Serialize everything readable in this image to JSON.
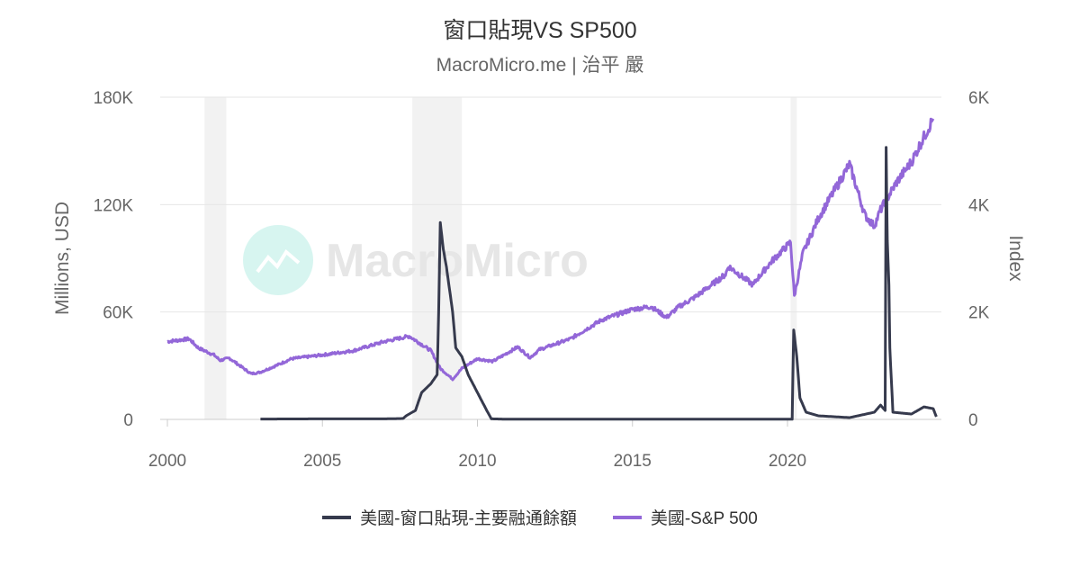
{
  "title": "窗口貼現VS SP500",
  "subtitle": "MacroMicro.me | 治平 嚴",
  "watermark": "MacroMicro",
  "chart_data": {
    "type": "line",
    "title": "窗口貼現VS SP500",
    "subtitle": "MacroMicro.me | 治平 嚴",
    "x_ticks": [
      "2000",
      "2005",
      "2010",
      "2015",
      "2020"
    ],
    "xlim": [
      2000,
      2024.9
    ],
    "y_left": {
      "label": "Millions, USD",
      "ticks": [
        "0",
        "60K",
        "120K",
        "180K"
      ],
      "lim": [
        0,
        180000
      ]
    },
    "y_right": {
      "label": "Index",
      "ticks": [
        "0",
        "2K",
        "4K",
        "6K"
      ],
      "lim": [
        0,
        6000
      ]
    },
    "grid": true,
    "legend_position": "bottom",
    "recessions": [
      [
        2001.2,
        2001.9
      ],
      [
        2007.9,
        2009.5
      ],
      [
        2020.1,
        2020.3
      ]
    ],
    "series": [
      {
        "name": "美國-窗口貼現-主要融通餘額",
        "axis": "left",
        "color": "#363a4d",
        "x": [
          2003.0,
          2005.0,
          2007.0,
          2007.6,
          2007.7,
          2008.0,
          2008.2,
          2008.5,
          2008.7,
          2008.75,
          2008.8,
          2008.9,
          2009.0,
          2009.2,
          2009.3,
          2009.5,
          2009.7,
          2010.0,
          2010.3,
          2010.45,
          2011,
          2015,
          2020.1,
          2020.15,
          2020.2,
          2020.3,
          2020.4,
          2020.6,
          2021.0,
          2022.0,
          2022.8,
          2023.0,
          2023.15,
          2023.18,
          2023.22,
          2023.27,
          2023.3,
          2023.4,
          2024.0,
          2024.4,
          2024.7,
          2024.8
        ],
        "values": [
          200,
          300,
          300,
          500,
          2000,
          5000,
          15000,
          20000,
          25000,
          60000,
          110000,
          95000,
          85000,
          60000,
          40000,
          35000,
          25000,
          15000,
          5000,
          300,
          100,
          100,
          100,
          100,
          50000,
          35000,
          12000,
          4000,
          2000,
          1000,
          4000,
          8000,
          5000,
          152000,
          100000,
          75000,
          40000,
          4000,
          3000,
          7000,
          6000,
          1500
        ]
      },
      {
        "name": "美國-S&P 500",
        "axis": "right",
        "color": "#9367d8",
        "x": [
          2000.0,
          2000.7,
          2001.0,
          2001.5,
          2001.7,
          2002.0,
          2002.7,
          2003.0,
          2003.5,
          2004.0,
          2005.0,
          2006.0,
          2007.0,
          2007.8,
          2008.5,
          2008.8,
          2009.2,
          2009.5,
          2010.0,
          2010.5,
          2011.3,
          2011.7,
          2012.0,
          2013.0,
          2014.0,
          2015.0,
          2015.6,
          2016.1,
          2016.5,
          2017.0,
          2018.0,
          2018.1,
          2018.9,
          2019.0,
          2019.5,
          2020.1,
          2020.22,
          2020.5,
          2021.0,
          2022.0,
          2022.5,
          2022.8,
          2023.0,
          2023.5,
          2024.0,
          2024.7
        ],
        "values": [
          1450,
          1500,
          1330,
          1200,
          1100,
          1140,
          850,
          880,
          1000,
          1130,
          1200,
          1280,
          1450,
          1550,
          1280,
          950,
          750,
          950,
          1130,
          1080,
          1350,
          1150,
          1300,
          1500,
          1850,
          2050,
          2100,
          1900,
          2100,
          2270,
          2700,
          2850,
          2500,
          2600,
          2950,
          3300,
          2300,
          3100,
          3750,
          4750,
          3800,
          3600,
          3900,
          4400,
          4800,
          5600
        ]
      }
    ]
  }
}
